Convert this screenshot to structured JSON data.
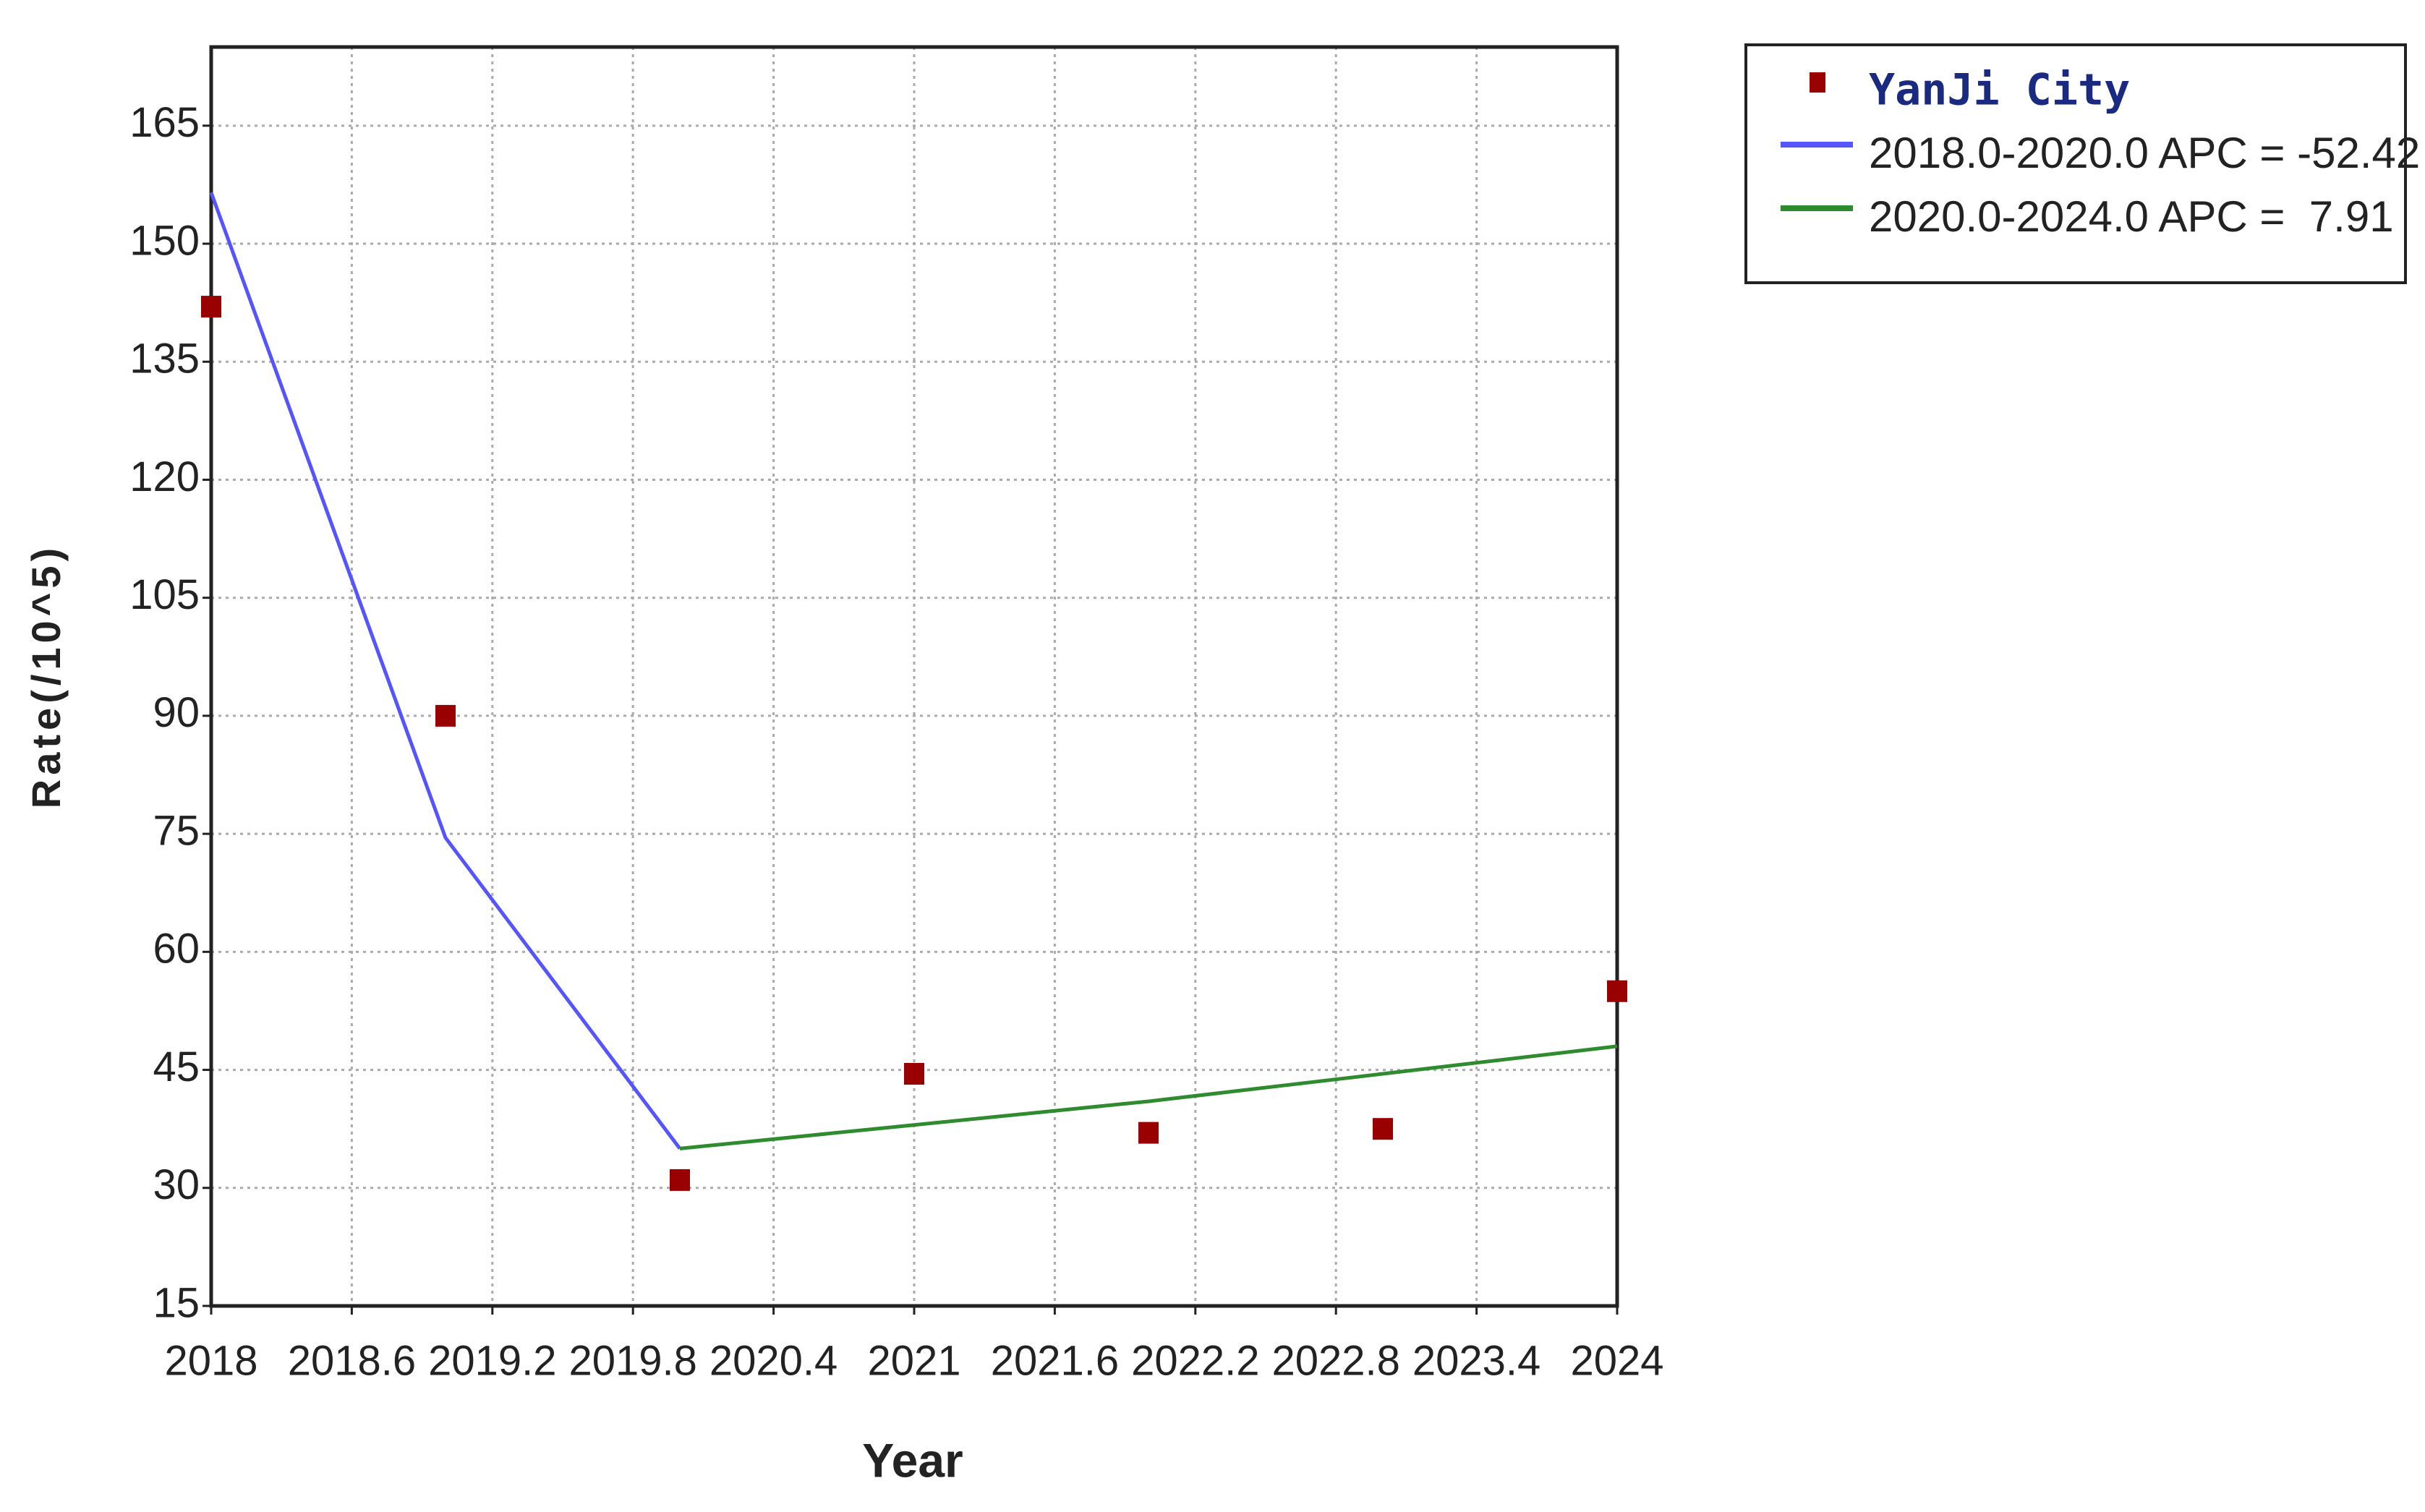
{
  "chart_data": {
    "type": "scatter-line",
    "x_label": "Year",
    "y_label": "Rate(/10^5)",
    "xlim": [
      2018,
      2024
    ],
    "xticks": [
      2018,
      2018.6,
      2019.2,
      2019.8,
      2020.4,
      2021,
      2021.6,
      2022.2,
      2022.8,
      2023.4,
      2024
    ],
    "ylim": [
      15,
      175
    ],
    "yticks": [
      15,
      30,
      45,
      60,
      75,
      90,
      105,
      120,
      135,
      150,
      165
    ],
    "grid": true,
    "legend": "outside-right-top",
    "series": [
      {
        "name": "YanJi City",
        "style": "markers",
        "color": "#990000",
        "x": [
          2018,
          2019,
          2020,
          2021,
          2022,
          2023,
          2024
        ],
        "values": [
          142,
          90,
          31,
          44.5,
          37,
          37.5,
          55
        ]
      },
      {
        "name": "2018.0-2020.0 APC = -52.42",
        "style": "line",
        "color": "#5555ff",
        "x": [
          2018,
          2019,
          2020
        ],
        "values": [
          156.5,
          74.5,
          35
        ]
      },
      {
        "name": "2020.0-2024.0 APC =  7.91",
        "style": "line",
        "color": "#2e8b2e",
        "x": [
          2020,
          2021,
          2022,
          2023,
          2024
        ],
        "values": [
          35,
          38,
          41,
          44.5,
          48
        ]
      }
    ]
  }
}
